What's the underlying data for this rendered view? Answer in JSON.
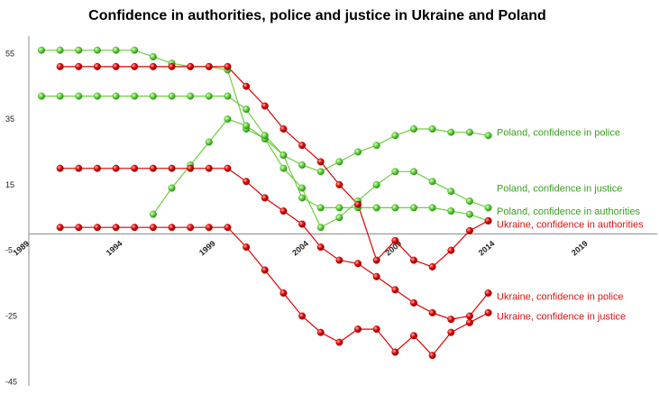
{
  "chart_data": {
    "type": "line",
    "title": "Confidence in authorities, police and justice in Ukraine and Poland",
    "xlabel": "",
    "ylabel": "",
    "xlim": [
      1989,
      2024
    ],
    "ylim": [
      -45,
      60
    ],
    "x_ticks": [
      "1989",
      "1994",
      "1999",
      "2004",
      "2009",
      "2014",
      "2019"
    ],
    "y_ticks": [
      "55",
      "35",
      "15",
      "-5",
      "-25",
      "-45"
    ],
    "grid": false,
    "series": [
      {
        "name": "Poland, confidence in police",
        "color": "#6ccf3a",
        "label_color": "#3aa01e",
        "x": [
          1990,
          1991,
          1992,
          1993,
          1994,
          1995,
          1996,
          1997,
          1998,
          1999,
          2000,
          2001,
          2002,
          2003,
          2004,
          2005,
          2006,
          2007,
          2008,
          2009,
          2010,
          2011,
          2012,
          2013,
          2014
        ],
        "y": [
          56,
          56,
          56,
          56,
          56,
          56,
          54,
          52,
          51,
          51,
          50,
          32,
          29,
          24,
          21,
          19,
          22,
          25,
          27,
          30,
          32,
          32,
          31,
          31,
          30
        ]
      },
      {
        "name": "Poland, confidence in justice",
        "color": "#6ccf3a",
        "label_color": "#3aa01e",
        "x": [
          1996,
          1997,
          1998,
          1999,
          2000,
          2001,
          2002,
          2003,
          2004,
          2005,
          2006,
          2007,
          2008,
          2009,
          2010,
          2011,
          2012,
          2013,
          2014
        ],
        "y": [
          6,
          14,
          21,
          28,
          35,
          33,
          29,
          20,
          14,
          2,
          5,
          10,
          15,
          19,
          19,
          16,
          13,
          10,
          8
        ]
      },
      {
        "name": "Poland, confidence in authorities",
        "color": "#6ccf3a",
        "label_color": "#3aa01e",
        "x": [
          1990,
          1991,
          1992,
          1993,
          1994,
          1995,
          1996,
          1997,
          1998,
          1999,
          2000,
          2001,
          2002,
          2003,
          2004,
          2005,
          2006,
          2007,
          2008,
          2009,
          2010,
          2011,
          2012,
          2013,
          2014
        ],
        "y": [
          42,
          42,
          42,
          42,
          42,
          42,
          42,
          42,
          42,
          42,
          42,
          38,
          30,
          24,
          11,
          8,
          8,
          8,
          8,
          8,
          8,
          8,
          7,
          6,
          4
        ]
      },
      {
        "name": "Ukraine, confidence in authorities",
        "color": "#e00000",
        "label_color": "#dd1111",
        "x": [
          1991,
          1992,
          1993,
          1994,
          1995,
          1996,
          1997,
          1998,
          1999,
          2000,
          2001,
          2002,
          2003,
          2004,
          2005,
          2006,
          2007,
          2008,
          2009,
          2010,
          2011,
          2012,
          2013,
          2014
        ],
        "y": [
          51,
          51,
          51,
          51,
          51,
          51,
          51,
          51,
          51,
          51,
          45,
          39,
          32,
          27,
          22,
          15,
          9,
          -8,
          -2,
          -8,
          -10,
          -5,
          1,
          4
        ]
      },
      {
        "name": "Ukraine, confidence in police",
        "color": "#e00000",
        "label_color": "#dd1111",
        "x": [
          1991,
          1992,
          1993,
          1994,
          1995,
          1996,
          1997,
          1998,
          1999,
          2000,
          2001,
          2002,
          2003,
          2004,
          2005,
          2006,
          2007,
          2008,
          2009,
          2010,
          2011,
          2012,
          2013,
          2014
        ],
        "y": [
          20,
          20,
          20,
          20,
          20,
          20,
          20,
          20,
          20,
          20,
          16,
          11,
          7,
          3,
          -4,
          -8,
          -9,
          -13,
          -17,
          -21,
          -24,
          -26,
          -25,
          -18
        ]
      },
      {
        "name": "Ukraine, confidence in justice",
        "color": "#e00000",
        "label_color": "#dd1111",
        "x": [
          1991,
          1992,
          1993,
          1994,
          1995,
          1996,
          1997,
          1998,
          1999,
          2000,
          2001,
          2002,
          2003,
          2004,
          2005,
          2006,
          2007,
          2008,
          2009,
          2010,
          2011,
          2012,
          2013,
          2014
        ],
        "y": [
          2,
          2,
          2,
          2,
          2,
          2,
          2,
          2,
          2,
          2,
          -4,
          -11,
          -18,
          -25,
          -30,
          -33,
          -29,
          -29,
          -36,
          -31,
          -37,
          -30,
          -27,
          -24
        ]
      }
    ],
    "labels": [
      {
        "series": 0,
        "text": "Poland, confidence in police",
        "at_value": 31
      },
      {
        "series": 1,
        "text": "Poland, confidence in justice",
        "at_value": 14
      },
      {
        "series": 2,
        "text": "Poland, confidence in authorities",
        "at_value": 7
      },
      {
        "series": 3,
        "text": "Ukraine, confidence in authorities",
        "at_value": 3
      },
      {
        "series": 4,
        "text": "Ukraine, confidence in police",
        "at_value": -19
      },
      {
        "series": 5,
        "text": "Ukraine, confidence in justice",
        "at_value": -25
      }
    ]
  }
}
